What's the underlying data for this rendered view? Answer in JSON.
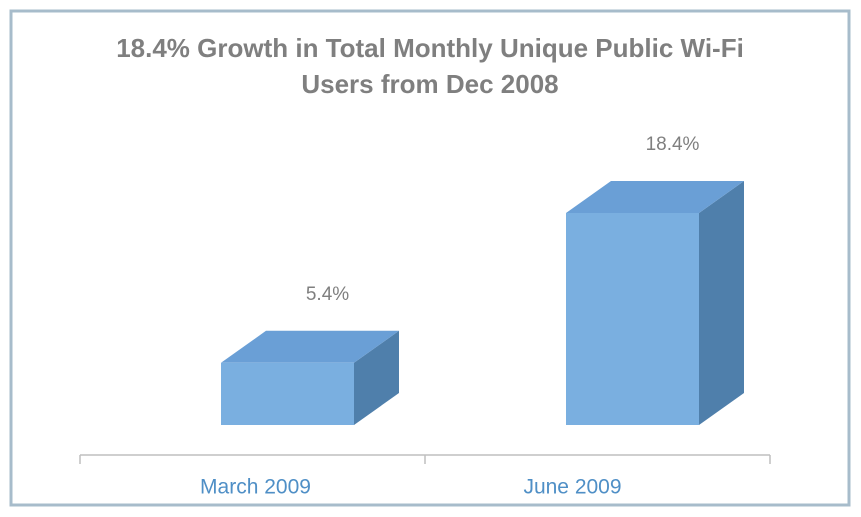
{
  "chart_data": {
    "type": "bar3d",
    "title": "18.4% Growth in Total Monthly Unique Public Wi-Fi Users from Dec 2008",
    "categories": [
      "March 2009",
      "June 2009"
    ],
    "values": [
      5.4,
      18.4
    ],
    "value_labels": [
      "5.4%",
      "18.4%"
    ],
    "color": "#7aafe0"
  }
}
